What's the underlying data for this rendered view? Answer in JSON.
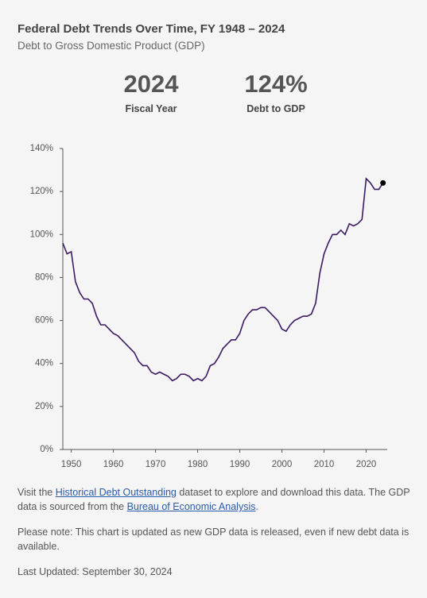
{
  "header": {
    "title": "Federal Debt Trends Over Time, FY 1948 – 2024",
    "subtitle": "Debt to Gross Domestic Product (GDP)"
  },
  "stats": [
    {
      "value": "2024",
      "label": "Fiscal Year"
    },
    {
      "value": "124%",
      "label": "Debt to GDP"
    }
  ],
  "chart_data": {
    "type": "line",
    "color": "#3b1a63",
    "x": [
      1948,
      1949,
      1950,
      1951,
      1952,
      1953,
      1954,
      1955,
      1956,
      1957,
      1958,
      1959,
      1960,
      1961,
      1962,
      1963,
      1964,
      1965,
      1966,
      1967,
      1968,
      1969,
      1970,
      1971,
      1972,
      1973,
      1974,
      1975,
      1976,
      1977,
      1978,
      1979,
      1980,
      1981,
      1982,
      1983,
      1984,
      1985,
      1986,
      1987,
      1988,
      1989,
      1990,
      1991,
      1992,
      1993,
      1994,
      1995,
      1996,
      1997,
      1998,
      1999,
      2000,
      2001,
      2002,
      2003,
      2004,
      2005,
      2006,
      2007,
      2008,
      2009,
      2010,
      2011,
      2012,
      2013,
      2014,
      2015,
      2016,
      2017,
      2018,
      2019,
      2020,
      2021,
      2022,
      2023,
      2024
    ],
    "values": [
      96,
      91,
      92,
      78,
      73,
      70,
      70,
      68,
      62,
      58,
      58,
      56,
      54,
      53,
      51,
      49,
      47,
      45,
      41,
      39,
      39,
      36,
      35,
      36,
      35,
      34,
      32,
      33,
      35,
      35,
      34,
      32,
      33,
      32,
      34,
      39,
      40,
      43,
      47,
      49,
      51,
      51,
      54,
      60,
      63,
      65,
      65,
      66,
      66,
      64,
      62,
      60,
      56,
      55,
      58,
      60,
      61,
      62,
      62,
      63,
      68,
      82,
      91,
      96,
      100,
      100,
      102,
      100,
      105,
      104,
      105,
      107,
      126,
      124,
      121,
      121,
      124
    ],
    "xlim": [
      1948,
      2025
    ],
    "xticks": [
      1950,
      1960,
      1970,
      1980,
      1990,
      2000,
      2010,
      2020
    ],
    "ylim": [
      0,
      140
    ],
    "yticks": [
      {
        "value": 0,
        "label": "0%"
      },
      {
        "value": 20,
        "label": "20%"
      },
      {
        "value": 40,
        "label": "40%"
      },
      {
        "value": 60,
        "label": "60%"
      },
      {
        "value": 80,
        "label": "80%"
      },
      {
        "value": 100,
        "label": "100%"
      },
      {
        "value": 120,
        "label": "120%"
      },
      {
        "value": 140,
        "label": "140%"
      }
    ]
  },
  "notes": {
    "paragraph1": [
      "Visit the ",
      "Historical Debt Outstanding",
      " dataset to explore and download this data. The GDP data is sourced from the ",
      "Bureau of Economic Analysis",
      "."
    ],
    "paragraph2": "Please note: This chart is updated as new GDP data is released, even if new debt data is available.",
    "updated": "Last Updated: September 30, 2024"
  }
}
